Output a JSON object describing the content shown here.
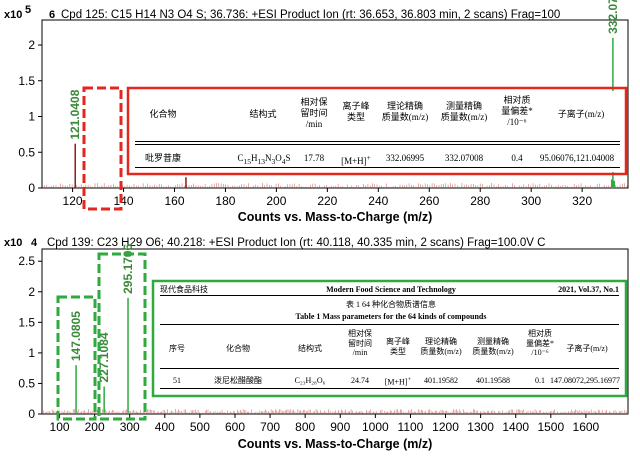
{
  "chart_data": [
    {
      "type": "bar",
      "title": "Cpd 125: C15 H14 N3 O4 S; 36.736: +ESI Product Ion (rt: 36.653, 36.803 min, 2 scans) Frag=100",
      "panel_index": "6",
      "y_scale": "x10",
      "y_exponent": "5",
      "xlabel": "Counts vs. Mass-to-Charge (m/z)",
      "xlim": [
        108,
        338
      ],
      "x_ticks": [
        120,
        140,
        160,
        180,
        200,
        220,
        240,
        260,
        280,
        300,
        320
      ],
      "ylim": [
        0,
        2.35
      ],
      "y_ticks": [
        0,
        0.5,
        1,
        1.5,
        2
      ],
      "peaks": [
        {
          "x": 121.0408,
          "y": 0.62,
          "label": "121.0408"
        },
        {
          "x": 164.5,
          "y": 0.15,
          "label": ""
        },
        {
          "x": 331.6,
          "y": 0.12,
          "label": ""
        },
        {
          "x": 332.0728,
          "y": 2.1,
          "label": "332.0728"
        },
        {
          "x": 332.6,
          "y": 0.1,
          "label": ""
        }
      ],
      "highlight_colors": {
        "dashed_box": "#e3261e",
        "table_box": "#e3261e"
      }
    },
    {
      "type": "bar",
      "title": "Cpd 139: C23 H29 O6; 40.218: +ESI Product Ion (rt: 40.118, 40.335 min, 2 scans) Frag=100.0V C",
      "panel_index": "4",
      "y_scale": "x10",
      "y_exponent": "",
      "xlabel": "Counts vs. Mass-to-Charge (m/z)",
      "xlim": [
        50,
        1720
      ],
      "x_ticks": [
        100,
        200,
        300,
        400,
        500,
        600,
        700,
        800,
        900,
        1000,
        1100,
        1200,
        1300,
        1400,
        1500,
        1600
      ],
      "ylim": [
        0,
        2.7
      ],
      "y_ticks": [
        0,
        0.5,
        1,
        1.5,
        2,
        2.5
      ],
      "peaks": [
        {
          "x": 147.0805,
          "y": 0.8,
          "label": "147.0805"
        },
        {
          "x": 227.1084,
          "y": 0.45,
          "label": "227.1084"
        },
        {
          "x": 295.1706,
          "y": 1.9,
          "label": "295.1706"
        }
      ],
      "highlight_colors": {
        "dashed_box": "#2eaa3f",
        "table_box": "#2eaa3f"
      }
    }
  ],
  "table1": {
    "headers": [
      "化合物",
      "结构式",
      "相对保\n留时间\n/min",
      "离子峰\n类型",
      "理论精确\n质量数(m/z)",
      "测量精确\n质量数(m/z)",
      "相对质\n量偏差*\n/10⁻⁶",
      "子离子(m/z)"
    ],
    "row": {
      "compound": "吡罗昔康",
      "formula_main": "C",
      "f1": "15",
      "h": "H",
      "f2": "13",
      "n": "N",
      "f3": "3",
      "o": "O",
      "f4": "4",
      "s": "S",
      "rt": "17.78",
      "ion": "[M+H]",
      "ion_sup": "+",
      "theo": "332.06995",
      "meas": "332.07008",
      "dev": "0.4",
      "frag": "95.06076,121.04008"
    }
  },
  "table2": {
    "journal": "现代食品科技",
    "journal_en": "Modern Food Science and Technology",
    "vol": "2021, Vol.37, No.1",
    "caption_cn": "表 1  64 种化合物质谱信息",
    "caption_en": "Table 1 Mass parameters for the 64 kinds of compounds",
    "headers": [
      "序号",
      "化合物",
      "结构式",
      "相对保\n留时间\n/min",
      "离子峰\n类型",
      "理论精确\n质量数(m/z)",
      "测量精确\n质量数(m/z)",
      "相对质\n量偏差*\n/10⁻⁶",
      "子离子(m/z)"
    ],
    "row": {
      "no": "51",
      "compound": "泼尼松醋酸酯",
      "formula": "C₂₃H₂₈O₆",
      "rt": "24.74",
      "ion": "[M+H]",
      "ion_sup": "+",
      "theo": "401.19582",
      "meas": "401.19588",
      "dev": "0.1",
      "frag": "147.08072,295.16977"
    }
  }
}
